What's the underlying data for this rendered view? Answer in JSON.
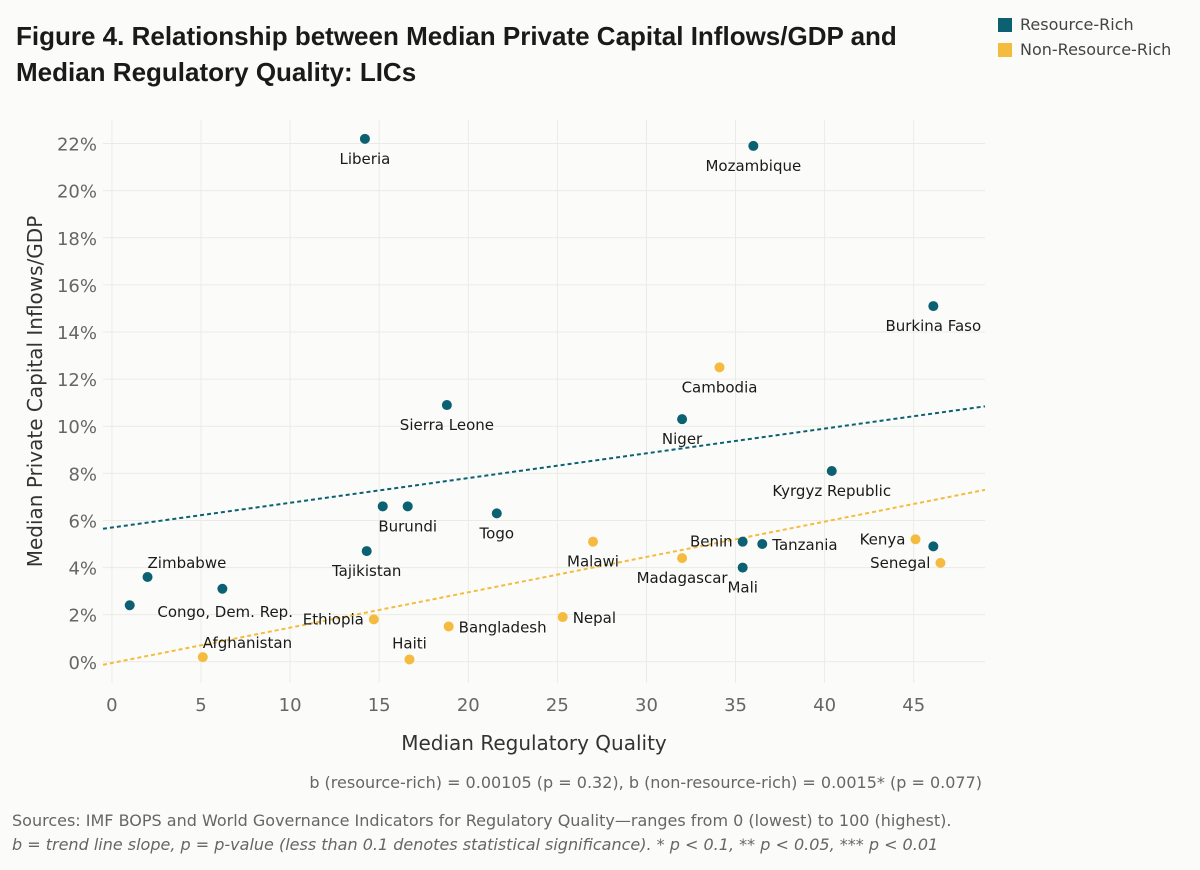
{
  "chart_data": {
    "type": "scatter",
    "title": "Figure 4. Relationship between Median Private Capital Inflows/GDP and Median Regulatory Quality: LICs",
    "xlabel": "Median Regulatory Quality",
    "ylabel": "Median Private Capital Inflows/GDP",
    "xlim": [
      -0.5,
      49
    ],
    "ylim": [
      -0.9,
      23
    ],
    "xticks": [
      0,
      5,
      10,
      15,
      20,
      25,
      30,
      35,
      40,
      45
    ],
    "xtick_labels": [
      "0",
      "5",
      "10",
      "15",
      "20",
      "25",
      "30",
      "35",
      "40",
      "45"
    ],
    "yticks": [
      0,
      2,
      4,
      6,
      8,
      10,
      12,
      14,
      16,
      18,
      20,
      22
    ],
    "ytick_labels": [
      "0%",
      "2%",
      "4%",
      "6%",
      "8%",
      "10%",
      "12%",
      "14%",
      "16%",
      "18%",
      "20%",
      "22%"
    ],
    "grid": true,
    "legend_position": "top-right",
    "series": [
      {
        "name": "Resource-Rich",
        "color": "#0b6172",
        "points": [
          {
            "label": "Liberia",
            "x": 14.2,
            "y": 22.2,
            "pos": "below"
          },
          {
            "label": "Mozambique",
            "x": 36.0,
            "y": 21.9,
            "pos": "below"
          },
          {
            "label": "Burkina Faso",
            "x": 46.1,
            "y": 15.1,
            "pos": "below"
          },
          {
            "label": "Sierra Leone",
            "x": 18.8,
            "y": 10.9,
            "pos": "below"
          },
          {
            "label": "Niger",
            "x": 32.0,
            "y": 10.3,
            "pos": "below"
          },
          {
            "label": "Kyrgyz Republic",
            "x": 40.4,
            "y": 8.1,
            "pos": "below"
          },
          {
            "label": "Burundi",
            "x": 16.6,
            "y": 6.6,
            "pos": "below-left"
          },
          {
            "label": "",
            "x": 15.2,
            "y": 6.6
          },
          {
            "label": "Togo",
            "x": 21.6,
            "y": 6.3,
            "pos": "below"
          },
          {
            "label": "Tajikistan",
            "x": 14.3,
            "y": 4.7,
            "pos": "below"
          },
          {
            "label": "Zimbabwe",
            "x": 2.0,
            "y": 3.6,
            "pos": "above-right"
          },
          {
            "label": "Congo, Dem. Rep.",
            "x": 6.2,
            "y": 3.1,
            "pos": "below-right"
          },
          {
            "label": "",
            "x": 1.0,
            "y": 2.4
          },
          {
            "label": "Benin",
            "x": 35.4,
            "y": 5.1,
            "pos": "left"
          },
          {
            "label": "Tanzania",
            "x": 36.5,
            "y": 5.0,
            "pos": "right"
          },
          {
            "label": "Mali",
            "x": 35.4,
            "y": 4.0,
            "pos": "below"
          },
          {
            "label": "",
            "x": 46.1,
            "y": 4.9
          }
        ],
        "trend": {
          "slope": 0.105,
          "intercept": 5.7
        }
      },
      {
        "name": "Non-Resource-Rich",
        "color": "#f5bb3e",
        "points": [
          {
            "label": "Cambodia",
            "x": 34.1,
            "y": 12.5,
            "pos": "below"
          },
          {
            "label": "Malawi",
            "x": 27.0,
            "y": 5.1,
            "pos": "below"
          },
          {
            "label": "Madagascar",
            "x": 32.0,
            "y": 4.4,
            "pos": "below"
          },
          {
            "label": "Kenya",
            "x": 45.1,
            "y": 5.2,
            "pos": "left"
          },
          {
            "label": "Senegal",
            "x": 46.5,
            "y": 4.2,
            "pos": "left"
          },
          {
            "label": "Ethiopia",
            "x": 14.7,
            "y": 1.8,
            "pos": "left"
          },
          {
            "label": "Haiti",
            "x": 16.7,
            "y": 0.1,
            "pos": "above"
          },
          {
            "label": "Bangladesh",
            "x": 18.9,
            "y": 1.5,
            "pos": "right"
          },
          {
            "label": "Nepal",
            "x": 25.3,
            "y": 1.9,
            "pos": "right"
          },
          {
            "label": "Afghanistan",
            "x": 5.1,
            "y": 0.2,
            "pos": "above-right"
          }
        ],
        "trend": {
          "slope": 0.15,
          "intercept": -0.05
        }
      }
    ]
  },
  "stats_text": "b (resource-rich) = 0.00105 (p = 0.32), b (non-resource-rich) = 0.0015* (p = 0.077)",
  "sources_text": "Sources: IMF BOPS and World Governance Indicators for Regulatory Quality—ranges from 0 (lowest) to 100 (highest).",
  "footnote_text": "b = trend line slope, p = p-value (less than 0.1 denotes statistical significance). * p < 0.1, ** p < 0.05, *** p < 0.01"
}
